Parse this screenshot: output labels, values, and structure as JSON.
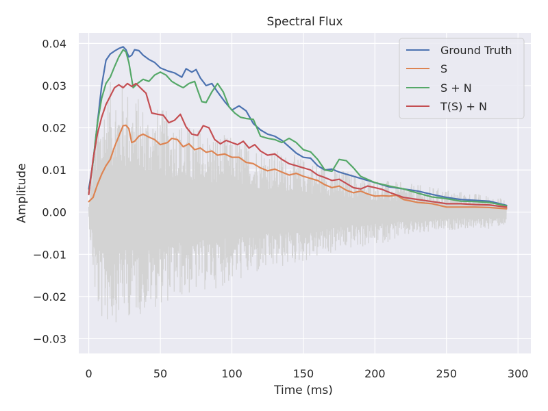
{
  "chart_data": {
    "type": "line",
    "title": "Spectral Flux",
    "xlabel": "Time (ms)",
    "ylabel": "Amplitude",
    "xlim": [
      -7,
      309
    ],
    "ylim": [
      -0.0335,
      0.0425
    ],
    "xticks": [
      0,
      50,
      100,
      150,
      200,
      250,
      300
    ],
    "xtick_labels": [
      "0",
      "50",
      "100",
      "150",
      "200",
      "250",
      "300"
    ],
    "yticks": [
      -0.03,
      -0.02,
      -0.01,
      0.0,
      0.01,
      0.02,
      0.03,
      0.04
    ],
    "ytick_labels": [
      "−0.03",
      "−0.02",
      "−0.01",
      "0.00",
      "0.01",
      "0.02",
      "0.03",
      "0.04"
    ],
    "grid": true,
    "legend_position": "top-right",
    "background_signal": {
      "color": "#d3d3d3",
      "envelope_x": [
        0,
        5,
        10,
        15,
        20,
        25,
        30,
        40,
        50,
        60,
        70,
        80,
        90,
        100,
        120,
        140,
        160,
        180,
        200,
        220,
        240,
        260,
        280,
        292
      ],
      "envelope_pos": [
        0.002,
        0.022,
        0.028,
        0.031,
        0.032,
        0.031,
        0.029,
        0.026,
        0.025,
        0.023,
        0.021,
        0.02,
        0.019,
        0.018,
        0.016,
        0.014,
        0.012,
        0.01,
        0.008,
        0.007,
        0.006,
        0.005,
        0.004,
        0.003
      ],
      "envelope_neg": [
        -0.002,
        -0.024,
        -0.027,
        -0.027,
        -0.026,
        -0.025,
        -0.025,
        -0.024,
        -0.022,
        -0.021,
        -0.02,
        -0.019,
        -0.018,
        -0.017,
        -0.015,
        -0.013,
        -0.011,
        -0.009,
        -0.008,
        -0.006,
        -0.005,
        -0.004,
        -0.004,
        -0.003
      ]
    },
    "series": [
      {
        "name": "Ground Truth",
        "color": "#4c72b0",
        "x": [
          0,
          3,
          6,
          9,
          12,
          15,
          18,
          21,
          24,
          26,
          28,
          30,
          32,
          35,
          38,
          42,
          46,
          50,
          55,
          60,
          65,
          68,
          72,
          75,
          78,
          82,
          86,
          90,
          95,
          100,
          105,
          110,
          115,
          120,
          125,
          130,
          135,
          140,
          145,
          150,
          155,
          160,
          165,
          170,
          175,
          180,
          190,
          200,
          210,
          220,
          230,
          240,
          250,
          260,
          270,
          280,
          292
        ],
        "y": [
          0.0055,
          0.012,
          0.021,
          0.03,
          0.036,
          0.0375,
          0.0382,
          0.0388,
          0.0392,
          0.0385,
          0.0368,
          0.0372,
          0.0385,
          0.0383,
          0.0372,
          0.0362,
          0.0355,
          0.0342,
          0.0335,
          0.033,
          0.032,
          0.034,
          0.0332,
          0.0338,
          0.0318,
          0.03,
          0.0305,
          0.0285,
          0.0262,
          0.0242,
          0.0252,
          0.024,
          0.021,
          0.0195,
          0.0185,
          0.018,
          0.017,
          0.0155,
          0.014,
          0.013,
          0.0128,
          0.011,
          0.01,
          0.0102,
          0.0095,
          0.009,
          0.008,
          0.007,
          0.006,
          0.0055,
          0.005,
          0.0042,
          0.0035,
          0.003,
          0.0028,
          0.0026,
          0.0016
        ]
      },
      {
        "name": "S",
        "color": "#dd8452",
        "x": [
          0,
          3,
          6,
          9,
          12,
          15,
          18,
          21,
          24,
          26,
          28,
          30,
          32,
          35,
          38,
          42,
          46,
          50,
          55,
          58,
          62,
          66,
          70,
          74,
          78,
          82,
          86,
          90,
          95,
          100,
          105,
          110,
          115,
          120,
          125,
          130,
          135,
          140,
          145,
          150,
          155,
          160,
          165,
          170,
          175,
          180,
          185,
          190,
          195,
          200,
          205,
          210,
          215,
          220,
          230,
          240,
          250,
          260,
          270,
          280,
          292
        ],
        "y": [
          0.0025,
          0.0035,
          0.0065,
          0.009,
          0.011,
          0.0125,
          0.0155,
          0.018,
          0.0205,
          0.0206,
          0.0198,
          0.0165,
          0.0168,
          0.018,
          0.0185,
          0.0178,
          0.0172,
          0.016,
          0.0165,
          0.0175,
          0.0172,
          0.0155,
          0.0162,
          0.0148,
          0.0152,
          0.0142,
          0.0145,
          0.0135,
          0.0138,
          0.013,
          0.013,
          0.0118,
          0.0115,
          0.0105,
          0.0098,
          0.0102,
          0.0095,
          0.0088,
          0.0092,
          0.0085,
          0.008,
          0.0075,
          0.0065,
          0.0058,
          0.0062,
          0.0052,
          0.0046,
          0.005,
          0.0043,
          0.0038,
          0.0039,
          0.0038,
          0.004,
          0.003,
          0.0023,
          0.002,
          0.0012,
          0.0012,
          0.0012,
          0.0011,
          0.0008
        ]
      },
      {
        "name": "S + N",
        "color": "#55a868",
        "x": [
          0,
          3,
          6,
          9,
          12,
          15,
          18,
          21,
          24,
          26,
          28,
          31,
          34,
          38,
          42,
          46,
          50,
          54,
          58,
          62,
          66,
          70,
          74,
          76,
          79,
          82,
          86,
          90,
          94,
          98,
          102,
          106,
          110,
          115,
          120,
          125,
          130,
          135,
          140,
          145,
          150,
          155,
          160,
          165,
          170,
          175,
          180,
          185,
          190,
          200,
          210,
          220,
          230,
          240,
          250,
          260,
          270,
          280,
          292
        ],
        "y": [
          0.0045,
          0.012,
          0.021,
          0.027,
          0.0305,
          0.032,
          0.0345,
          0.0368,
          0.0385,
          0.038,
          0.0355,
          0.0295,
          0.0305,
          0.0315,
          0.031,
          0.0325,
          0.0332,
          0.0325,
          0.031,
          0.0302,
          0.0295,
          0.0305,
          0.031,
          0.029,
          0.0262,
          0.026,
          0.0285,
          0.0305,
          0.0285,
          0.025,
          0.0235,
          0.0225,
          0.0222,
          0.022,
          0.018,
          0.0175,
          0.0172,
          0.0165,
          0.0175,
          0.0165,
          0.0148,
          0.0143,
          0.0125,
          0.01,
          0.0097,
          0.0125,
          0.0122,
          0.0105,
          0.0085,
          0.007,
          0.0062,
          0.0055,
          0.0045,
          0.0036,
          0.0032,
          0.0026,
          0.0025,
          0.0023,
          0.0015
        ]
      },
      {
        "name": "T(S) + N",
        "color": "#c44e52",
        "x": [
          0,
          3,
          6,
          9,
          12,
          15,
          18,
          21,
          24,
          27,
          30,
          33,
          36,
          40,
          44,
          48,
          52,
          56,
          60,
          64,
          68,
          72,
          76,
          80,
          84,
          88,
          92,
          96,
          100,
          104,
          108,
          112,
          116,
          120,
          125,
          130,
          135,
          140,
          145,
          150,
          155,
          160,
          165,
          170,
          175,
          180,
          185,
          190,
          195,
          200,
          205,
          210,
          220,
          230,
          240,
          250,
          260,
          270,
          280,
          292
        ],
        "y": [
          0.0042,
          0.0125,
          0.0185,
          0.0225,
          0.0255,
          0.0275,
          0.0295,
          0.0302,
          0.0295,
          0.0305,
          0.0298,
          0.0305,
          0.0295,
          0.0282,
          0.0235,
          0.0232,
          0.023,
          0.0212,
          0.0218,
          0.0232,
          0.0202,
          0.0185,
          0.0182,
          0.0205,
          0.02,
          0.0172,
          0.0162,
          0.017,
          0.0165,
          0.016,
          0.0168,
          0.0152,
          0.016,
          0.0145,
          0.0135,
          0.0138,
          0.0125,
          0.0115,
          0.011,
          0.0105,
          0.01,
          0.0088,
          0.0082,
          0.0075,
          0.0078,
          0.0068,
          0.0058,
          0.0055,
          0.0062,
          0.0058,
          0.0054,
          0.0047,
          0.0035,
          0.003,
          0.0025,
          0.002,
          0.002,
          0.0018,
          0.0017,
          0.0012
        ]
      }
    ]
  }
}
